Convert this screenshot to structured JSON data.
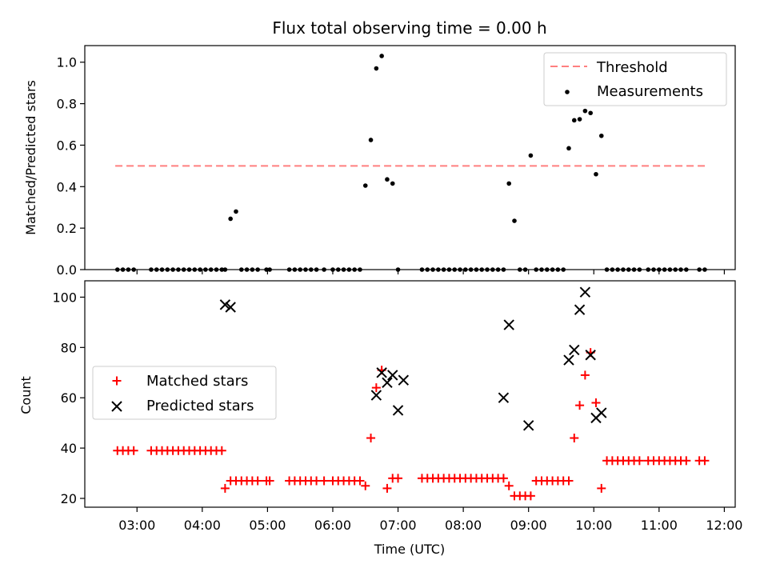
{
  "colors": {
    "threshold": "#ff7f7f",
    "measurement": "#000000",
    "matched": "#ff0000",
    "predicted": "#000000"
  },
  "chart_data": [
    {
      "type": "scatter",
      "title": "Flux total observing time = 0.00 h",
      "xlabel": "",
      "ylabel": "Matched/Predicted stars",
      "xlim": [
        "02:12",
        "12:10"
      ],
      "ylim": [
        0,
        1.08
      ],
      "yticks": [
        "0.0",
        "0.2",
        "0.4",
        "0.6",
        "0.8",
        "1.0"
      ],
      "grid": false,
      "legend_position": "top-right",
      "threshold": {
        "name": "Threshold",
        "value": 0.5,
        "x_range": [
          "02:40",
          "11:45"
        ],
        "style": "dashed"
      },
      "series": [
        {
          "name": "Measurements",
          "marker": "dot",
          "x": [
            "02:42",
            "02:47",
            "02:52",
            "02:57",
            "03:13",
            "03:18",
            "03:23",
            "03:28",
            "03:33",
            "03:38",
            "03:43",
            "03:48",
            "03:53",
            "03:58",
            "04:03",
            "04:08",
            "04:13",
            "04:18",
            "04:21",
            "04:26",
            "04:31",
            "04:36",
            "04:41",
            "04:46",
            "04:51",
            "04:59",
            "05:02",
            "05:20",
            "05:25",
            "05:30",
            "05:35",
            "05:40",
            "05:45",
            "05:52",
            "06:00",
            "06:05",
            "06:10",
            "06:15",
            "06:20",
            "06:25",
            "06:30",
            "06:35",
            "06:40",
            "06:45",
            "06:50",
            "06:55",
            "07:00",
            "07:22",
            "07:27",
            "07:32",
            "07:37",
            "07:42",
            "07:47",
            "07:52",
            "07:57",
            "08:02",
            "08:07",
            "08:12",
            "08:17",
            "08:22",
            "08:27",
            "08:32",
            "08:37",
            "08:42",
            "08:47",
            "08:52",
            "08:57",
            "09:02",
            "09:07",
            "09:12",
            "09:17",
            "09:22",
            "09:27",
            "09:32",
            "09:37",
            "09:42",
            "09:47",
            "09:52",
            "09:57",
            "10:02",
            "10:07",
            "10:12",
            "10:17",
            "10:22",
            "10:27",
            "10:32",
            "10:37",
            "10:42",
            "10:50",
            "10:55",
            "11:00",
            "11:05",
            "11:10",
            "11:15",
            "11:20",
            "11:25",
            "11:37",
            "11:42"
          ],
          "y": [
            0,
            0,
            0,
            0,
            0,
            0,
            0,
            0,
            0,
            0,
            0,
            0,
            0,
            0,
            0,
            0,
            0,
            0,
            0,
            0.245,
            0.28,
            0,
            0,
            0,
            0,
            0,
            0,
            0,
            0,
            0,
            0,
            0,
            0,
            0,
            0,
            0,
            0,
            0,
            0,
            0,
            0.405,
            0.625,
            0.97,
            1.03,
            0.435,
            0.415,
            0,
            0,
            0,
            0,
            0,
            0,
            0,
            0,
            0,
            0,
            0,
            0,
            0,
            0,
            0,
            0,
            0,
            0.415,
            0.235,
            0,
            0,
            0.55,
            0,
            0,
            0,
            0,
            0,
            0,
            0.585,
            0.72,
            0.725,
            0.765,
            0.755,
            0.46,
            0.645,
            0,
            0,
            0,
            0,
            0,
            0,
            0,
            0,
            0,
            0,
            0,
            0,
            0,
            0,
            0,
            0,
            0
          ]
        }
      ]
    },
    {
      "type": "scatter",
      "title": "",
      "xlabel": "Time (UTC)",
      "ylabel": "Count",
      "xlim": [
        "02:12",
        "12:10"
      ],
      "ylim": [
        16.5,
        106.5
      ],
      "yticks": [
        "20",
        "40",
        "60",
        "80",
        "100"
      ],
      "xticks": [
        "03:00",
        "04:00",
        "05:00",
        "06:00",
        "07:00",
        "08:00",
        "09:00",
        "10:00",
        "11:00",
        "12:00"
      ],
      "grid": false,
      "legend_position": "center-left",
      "series": [
        {
          "name": "Matched stars",
          "marker": "plus",
          "x": [
            "02:42",
            "02:47",
            "02:52",
            "02:57",
            "03:13",
            "03:18",
            "03:23",
            "03:28",
            "03:33",
            "03:38",
            "03:43",
            "03:48",
            "03:53",
            "03:58",
            "04:03",
            "04:08",
            "04:13",
            "04:18",
            "04:21",
            "04:26",
            "04:31",
            "04:36",
            "04:41",
            "04:46",
            "04:51",
            "04:59",
            "05:02",
            "05:20",
            "05:25",
            "05:30",
            "05:35",
            "05:40",
            "05:45",
            "05:52",
            "06:00",
            "06:05",
            "06:10",
            "06:15",
            "06:20",
            "06:25",
            "06:30",
            "06:35",
            "06:40",
            "06:45",
            "06:50",
            "06:55",
            "07:00",
            "07:22",
            "07:27",
            "07:32",
            "07:37",
            "07:42",
            "07:47",
            "07:52",
            "07:57",
            "08:02",
            "08:07",
            "08:12",
            "08:17",
            "08:22",
            "08:27",
            "08:32",
            "08:37",
            "08:42",
            "08:47",
            "08:52",
            "08:57",
            "09:02",
            "09:07",
            "09:12",
            "09:17",
            "09:22",
            "09:27",
            "09:32",
            "09:37",
            "09:42",
            "09:47",
            "09:52",
            "09:57",
            "10:02",
            "10:07",
            "10:12",
            "10:17",
            "10:22",
            "10:27",
            "10:32",
            "10:37",
            "10:42",
            "10:50",
            "10:55",
            "11:00",
            "11:05",
            "11:10",
            "11:15",
            "11:20",
            "11:25",
            "11:37",
            "11:42"
          ],
          "y": [
            39,
            39,
            39,
            39,
            39,
            39,
            39,
            39,
            39,
            39,
            39,
            39,
            39,
            39,
            39,
            39,
            39,
            39,
            24,
            27,
            27,
            27,
            27,
            27,
            27,
            27,
            27,
            27,
            27,
            27,
            27,
            27,
            27,
            27,
            27,
            27,
            27,
            27,
            27,
            27,
            25,
            44,
            64,
            71,
            24,
            28,
            28,
            28,
            28,
            28,
            28,
            28,
            28,
            28,
            28,
            28,
            28,
            28,
            28,
            28,
            28,
            28,
            28,
            25,
            21,
            21,
            21,
            21,
            27,
            27,
            27,
            27,
            27,
            27,
            27,
            44,
            57,
            69,
            78,
            58,
            24,
            35,
            35,
            35,
            35,
            35,
            35,
            35,
            35,
            35,
            35,
            35,
            35,
            35,
            35,
            35,
            35,
            35
          ]
        },
        {
          "name": "Predicted stars",
          "marker": "x",
          "x": [
            "04:21",
            "04:26",
            "06:40",
            "06:45",
            "06:50",
            "06:55",
            "07:00",
            "07:05",
            "08:37",
            "08:42",
            "09:00",
            "09:37",
            "09:42",
            "09:47",
            "09:52",
            "09:57",
            "10:02",
            "10:07"
          ],
          "y": [
            97,
            96,
            61,
            70,
            66,
            69,
            55,
            67,
            60,
            89,
            49,
            75,
            79,
            95,
            102,
            77,
            52,
            54
          ]
        }
      ]
    }
  ]
}
